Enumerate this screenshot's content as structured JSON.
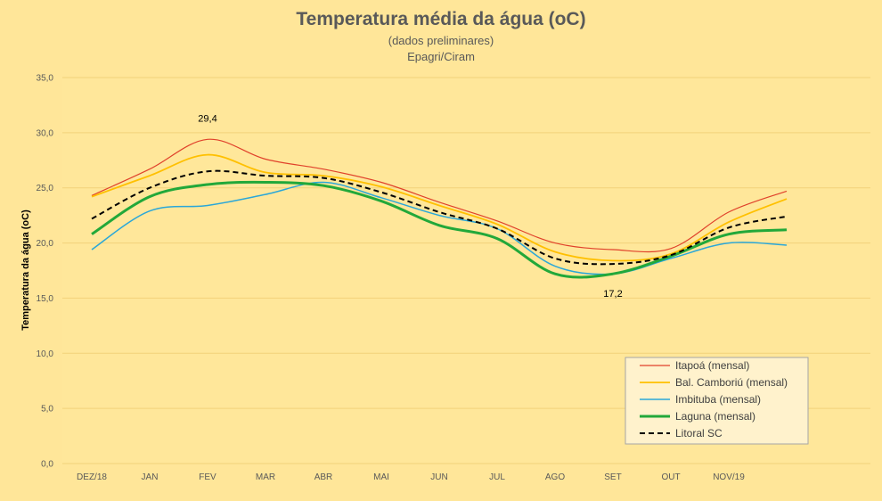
{
  "chart_data": {
    "type": "line",
    "title": "Temperatura média da água (oC)",
    "subtitle": [
      "(dados preliminares)",
      "Epagri/Ciram"
    ],
    "ylabel": "Temperatura da água (oC)",
    "xlabel": "",
    "ylim": [
      0,
      35
    ],
    "yticks": [
      "0,0",
      "5,0",
      "10,0",
      "15,0",
      "20,0",
      "25,0",
      "30,0",
      "35,0"
    ],
    "categories": [
      "DEZ/18",
      "JAN",
      "FEV",
      "MAR",
      "ABR",
      "MAI",
      "JUN",
      "JUL",
      "AGO",
      "SET",
      "OUT",
      "NOV/19",
      ""
    ],
    "grid": true,
    "legend_position": "bottom-right",
    "series": [
      {
        "name": "Itapoá (mensal)",
        "color": "#e0412b",
        "width": 1.2,
        "dash": "",
        "values": [
          24.3,
          26.7,
          29.4,
          27.6,
          26.7,
          25.5,
          23.7,
          22.0,
          20.0,
          19.4,
          19.5,
          22.8,
          24.7
        ]
      },
      {
        "name": "Bal. Camboriú (mensal)",
        "color": "#ffc000",
        "width": 1.8,
        "dash": "",
        "values": [
          24.2,
          26.1,
          28.0,
          26.4,
          26.1,
          25.1,
          23.4,
          21.7,
          19.2,
          18.4,
          19.0,
          21.9,
          24.0
        ]
      },
      {
        "name": "Imbituba (mensal)",
        "color": "#2aa7d8",
        "width": 1.5,
        "dash": "",
        "values": [
          19.4,
          22.9,
          23.4,
          24.4,
          25.5,
          24.1,
          22.5,
          21.3,
          17.9,
          17.2,
          18.6,
          20.0,
          19.8
        ]
      },
      {
        "name": "Laguna (mensal)",
        "color": "#22a83a",
        "width": 3,
        "dash": "",
        "values": [
          20.8,
          24.2,
          25.3,
          25.5,
          25.2,
          23.8,
          21.6,
          20.4,
          17.2,
          17.2,
          18.8,
          20.8,
          21.2
        ]
      },
      {
        "name": "Litoral SC",
        "color": "#000000",
        "width": 2,
        "dash": "6,4",
        "values": [
          22.2,
          25.0,
          26.5,
          26.1,
          25.9,
          24.6,
          22.8,
          21.3,
          18.6,
          18.1,
          18.9,
          21.4,
          22.4
        ]
      }
    ],
    "annotations": [
      {
        "text": "29,4",
        "category_index": 2,
        "value": 29.4,
        "position": "above"
      },
      {
        "text": "17,2",
        "category_index": 9,
        "value": 17.2,
        "position": "below"
      }
    ]
  }
}
